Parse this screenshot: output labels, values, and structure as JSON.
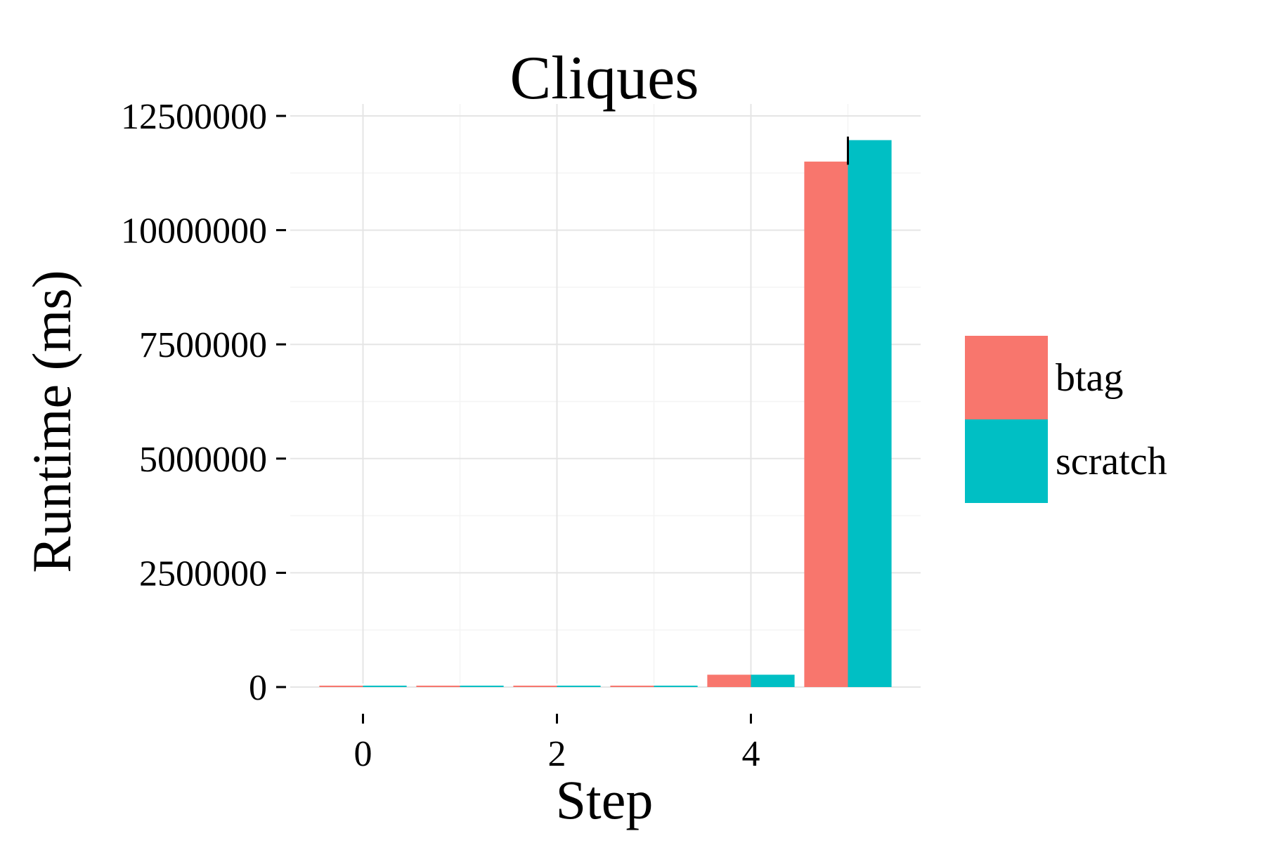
{
  "chart_data": {
    "type": "bar",
    "title": "Cliques",
    "xlabel": "Step",
    "ylabel": "Runtime (ms)",
    "x": [
      0,
      1,
      2,
      3,
      4,
      5
    ],
    "x_tick_labels": [
      "0",
      "2",
      "4"
    ],
    "x_ticks": [
      0,
      2,
      4
    ],
    "xlim": [
      -0.75,
      5.75
    ],
    "ylim": [
      0,
      12500000
    ],
    "y_ticks": [
      0,
      2500000,
      5000000,
      7500000,
      10000000,
      12500000
    ],
    "y_tick_labels": [
      "0",
      "2500000",
      "5000000",
      "7500000",
      "10000000",
      "12500000"
    ],
    "grid": true,
    "legend_position": "right",
    "series": [
      {
        "name": "btag",
        "color": "#F8766D",
        "values": [
          2000,
          2000,
          2000,
          2000,
          270000,
          11500000
        ]
      },
      {
        "name": "scratch",
        "color": "#00BFC4",
        "values": [
          2000,
          2000,
          2000,
          2000,
          270000,
          11970000
        ]
      }
    ]
  }
}
